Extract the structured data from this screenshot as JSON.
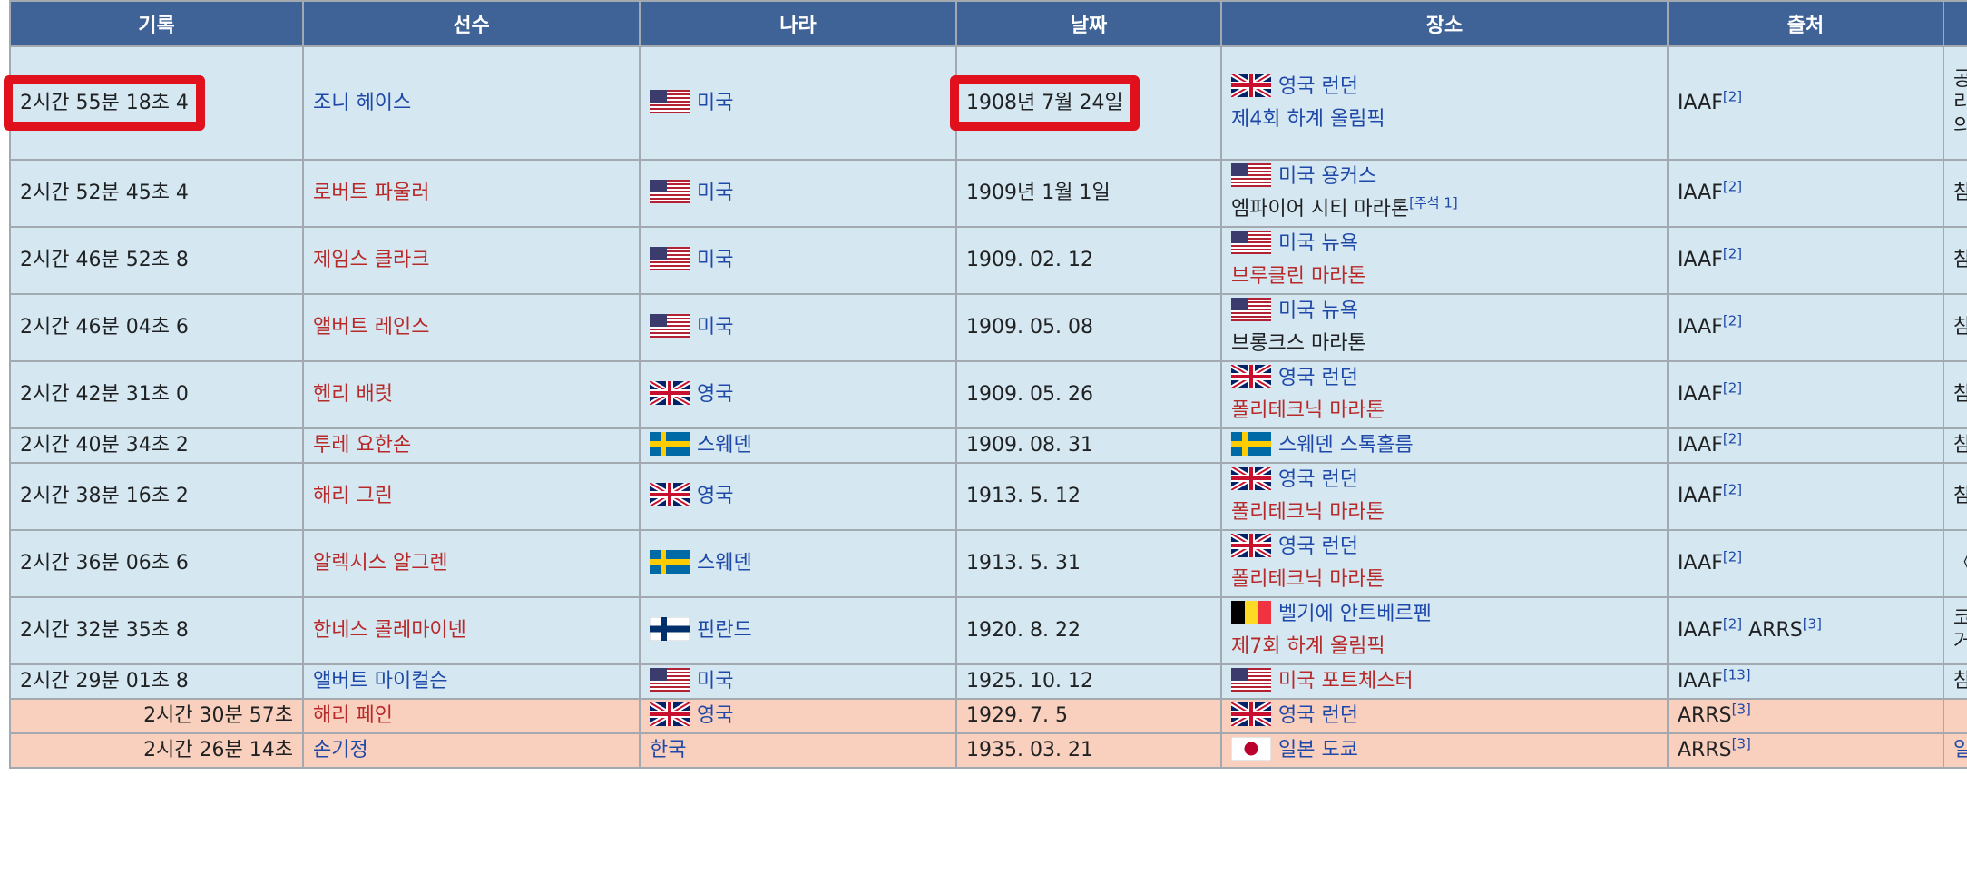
{
  "headers": [
    "기록",
    "선수",
    "나라",
    "날짜",
    "장소",
    "출처"
  ],
  "rows": [
    {
      "record": "2시간 55분 18초 4",
      "athlete": "조니 헤이스",
      "athlete_color": "blue",
      "flag": "us",
      "country": "미국",
      "date": "1908년 7월 24일",
      "venue_flag": "uk",
      "venue": "영국 런던",
      "venue_color": "blue",
      "event": "제4회 하계 올림픽",
      "event_color": "blue",
      "event_note": "",
      "source": "IAAF",
      "source_ref": "[2]",
      "source2": "",
      "source2_ref": "",
      "remark": [
        "공",
        "리",
        "의"
      ],
      "remark_color": "dark",
      "alt": false
    },
    {
      "record": "2시간 52분 45초 4",
      "athlete": "로버트 파울러",
      "athlete_color": "red",
      "flag": "us",
      "country": "미국",
      "date": "1909년 1월 1일",
      "venue_flag": "us",
      "venue": "미국 용커스",
      "venue_color": "blue",
      "event": "엠파이어 시티 마라톤",
      "event_color": "dark",
      "event_note": "[주석 1]",
      "source": "IAAF",
      "source_ref": "[2]",
      "source2": "",
      "source2_ref": "",
      "remark": [
        "참"
      ],
      "remark_color": "dark",
      "alt": false
    },
    {
      "record": "2시간 46분 52초 8",
      "athlete": "제임스 클라크",
      "athlete_color": "red",
      "flag": "us",
      "country": "미국",
      "date": "1909. 02. 12",
      "venue_flag": "us",
      "venue": "미국 뉴욕",
      "venue_color": "blue",
      "event": "브루클린 마라톤",
      "event_color": "red",
      "event_note": "",
      "source": "IAAF",
      "source_ref": "[2]",
      "source2": "",
      "source2_ref": "",
      "remark": [
        "참"
      ],
      "remark_color": "dark",
      "alt": false
    },
    {
      "record": "2시간 46분 04초 6",
      "athlete": "앨버트 레인스",
      "athlete_color": "red",
      "flag": "us",
      "country": "미국",
      "date": "1909. 05. 08",
      "venue_flag": "us",
      "venue": "미국 뉴욕",
      "venue_color": "blue",
      "event": "브롱크스 마라톤",
      "event_color": "dark",
      "event_note": "",
      "source": "IAAF",
      "source_ref": "[2]",
      "source2": "",
      "source2_ref": "",
      "remark": [
        "참"
      ],
      "remark_color": "dark",
      "alt": false
    },
    {
      "record": "2시간 42분 31초 0",
      "athlete": "헨리 배럿",
      "athlete_color": "red",
      "flag": "uk",
      "country": "영국",
      "date": "1909. 05. 26",
      "venue_flag": "uk",
      "venue": "영국 런던",
      "venue_color": "blue",
      "event": "폴리테크닉 마라톤",
      "event_color": "red",
      "event_note": "",
      "source": "IAAF",
      "source_ref": "[2]",
      "source2": "",
      "source2_ref": "",
      "remark": [
        "참"
      ],
      "remark_color": "dark",
      "alt": false
    },
    {
      "record": "2시간 40분 34초 2",
      "athlete": "투레 요한손",
      "athlete_color": "red",
      "flag": "se",
      "country": "스웨덴",
      "date": "1909. 08. 31",
      "venue_flag": "se",
      "venue": "스웨덴 스톡홀름",
      "venue_color": "blue",
      "event": "",
      "event_color": "dark",
      "event_note": "",
      "source": "IAAF",
      "source_ref": "[2]",
      "source2": "",
      "source2_ref": "",
      "remark": [
        "참"
      ],
      "remark_color": "dark",
      "alt": false
    },
    {
      "record": "2시간 38분 16초 2",
      "athlete": "해리 그린",
      "athlete_color": "red",
      "flag": "uk",
      "country": "영국",
      "date": "1913. 5. 12",
      "venue_flag": "uk",
      "venue": "영국 런던",
      "venue_color": "blue",
      "event": "폴리테크닉 마라톤",
      "event_color": "red",
      "event_note": "",
      "source": "IAAF",
      "source_ref": "[2]",
      "source2": "",
      "source2_ref": "",
      "remark": [
        "참"
      ],
      "remark_color": "dark",
      "alt": false
    },
    {
      "record": "2시간 36분 06초 6",
      "athlete": "알렉시스 알그렌",
      "athlete_color": "red",
      "flag": "se",
      "country": "스웨덴",
      "date": "1913. 5. 31",
      "venue_flag": "uk",
      "venue": "영국 런던",
      "venue_color": "blue",
      "event": "폴리테크닉 마라톤",
      "event_color": "red",
      "event_note": "",
      "source": "IAAF",
      "source_ref": "[2]",
      "source2": "",
      "source2_ref": "",
      "remark": [
        "《미"
      ],
      "remark_color": "dark",
      "alt": false
    },
    {
      "record": "2시간 32분 35초 8",
      "athlete": "한네스 콜레마이넨",
      "athlete_color": "red",
      "flag": "fi",
      "country": "핀란드",
      "date": "1920. 8. 22",
      "venue_flag": "be",
      "venue": "벨기에 안트베르펜",
      "venue_color": "blue",
      "event": "제7회 하계 올림픽",
      "event_color": "red",
      "event_note": "",
      "source": "IAAF",
      "source_ref": "[2]",
      "source2": "ARRS",
      "source2_ref": "[3]",
      "remark": [
        "코",
        "거"
      ],
      "remark_color": "dark",
      "alt": false
    },
    {
      "record": "2시간 29분 01초 8",
      "athlete": "앨버트 마이컬슨",
      "athlete_color": "blue",
      "flag": "us",
      "country": "미국",
      "date": "1925. 10. 12",
      "venue_flag": "us",
      "venue": "미국 포트체스터",
      "venue_color": "red",
      "event": "",
      "event_color": "dark",
      "event_note": "",
      "source": "IAAF",
      "source_ref": "[13]",
      "source2": "",
      "source2_ref": "",
      "remark": [
        "참"
      ],
      "remark_color": "dark",
      "alt": false
    },
    {
      "record": "2시간 30분 57초",
      "athlete": "해리 페인",
      "athlete_color": "red",
      "flag": "uk",
      "country": "영국",
      "date": "1929. 7. 5",
      "venue_flag": "uk",
      "venue": "영국 런던",
      "venue_color": "blue",
      "event": "",
      "event_color": "dark",
      "event_note": "",
      "source": "ARRS",
      "source_ref": "[3]",
      "source2": "",
      "source2_ref": "",
      "remark": [],
      "remark_color": "dark",
      "alt": true
    },
    {
      "record": "2시간 26분 14초",
      "athlete": "손기정",
      "athlete_color": "blue",
      "flag": "",
      "country": "한국",
      "date": "1935. 03. 21",
      "venue_flag": "jp",
      "venue": "일본 도쿄",
      "venue_color": "blue",
      "event": "",
      "event_color": "dark",
      "event_note": "",
      "source": "ARRS",
      "source_ref": "[3]",
      "source2": "",
      "source2_ref": "",
      "remark": [
        "일"
      ],
      "remark_color": "blue",
      "alt": true
    }
  ],
  "highlights": [
    "2시간 55분 18초 4",
    "1908년 7월 24일"
  ],
  "colors": {
    "header_bg": "#3f6397",
    "row_bg": "#d5e8f2",
    "alt_row_bg": "#f9cfbe",
    "link_blue": "#1f49a8",
    "link_red": "#b82a2a",
    "highlight": "#e0101c"
  }
}
